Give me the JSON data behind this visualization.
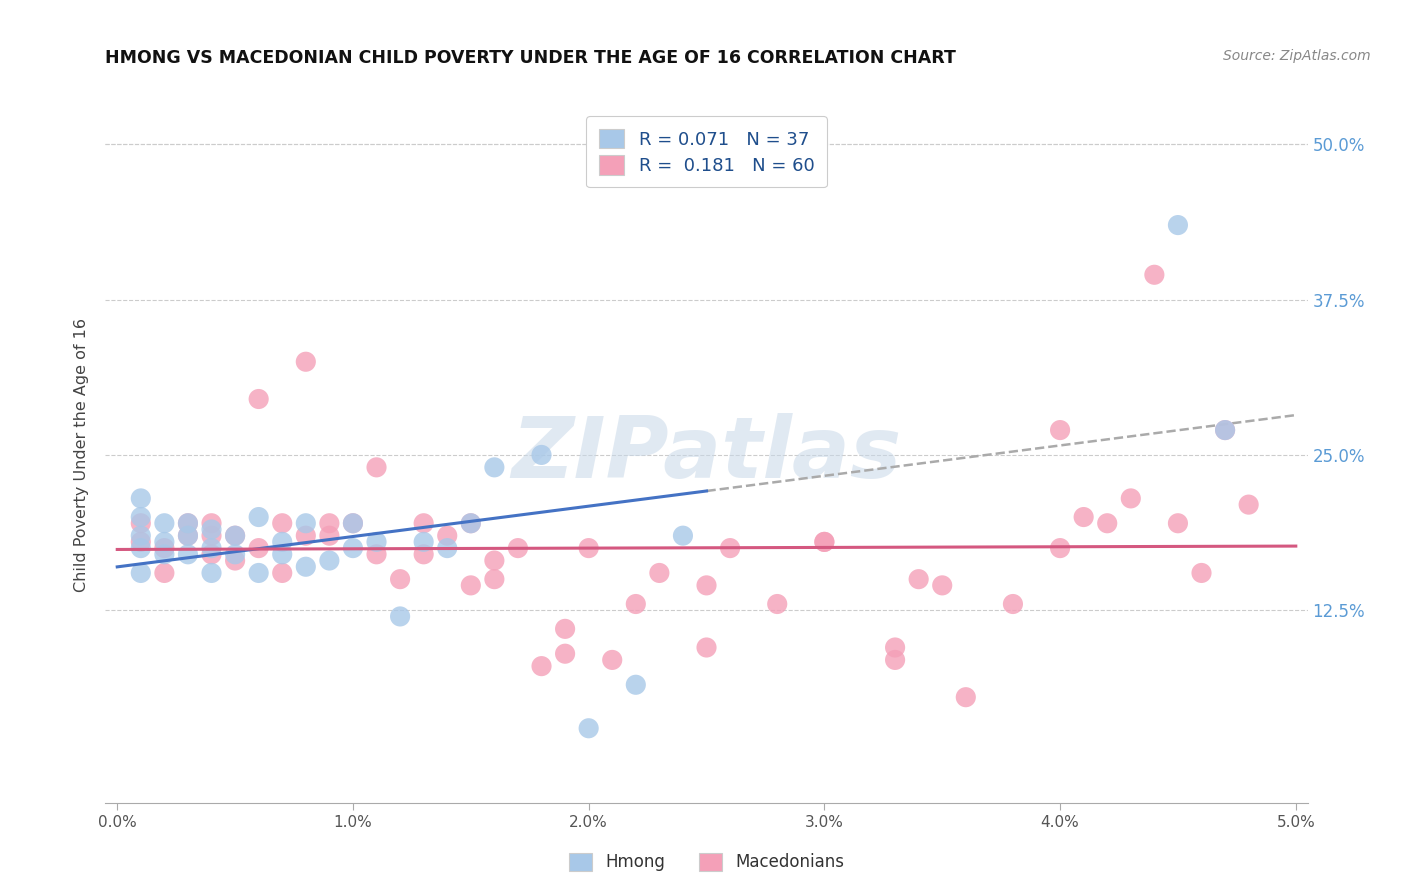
{
  "title": "HMONG VS MACEDONIAN CHILD POVERTY UNDER THE AGE OF 16 CORRELATION CHART",
  "source": "Source: ZipAtlas.com",
  "ylabel": "Child Poverty Under the Age of 16",
  "xmin": -0.0005,
  "xmax": 0.0505,
  "ymin": -0.03,
  "ymax": 0.53,
  "hmong_R": 0.071,
  "hmong_N": 37,
  "macd_R": 0.181,
  "macd_N": 60,
  "hmong_color": "#a8c8e8",
  "macd_color": "#f4a0b8",
  "hmong_line_color": "#4472c4",
  "macd_line_color": "#d45880",
  "dash_color": "#aaaaaa",
  "ytick_right_color": "#5b9bd5",
  "watermark_text": "ZIPatlas",
  "watermark_color": "#c8d8e8",
  "grid_color": "#cccccc",
  "hmong_x": [
    0.001,
    0.001,
    0.001,
    0.001,
    0.001,
    0.002,
    0.002,
    0.002,
    0.003,
    0.003,
    0.003,
    0.004,
    0.004,
    0.004,
    0.005,
    0.005,
    0.006,
    0.006,
    0.007,
    0.007,
    0.008,
    0.008,
    0.009,
    0.01,
    0.01,
    0.011,
    0.012,
    0.013,
    0.014,
    0.015,
    0.016,
    0.018,
    0.02,
    0.022,
    0.024,
    0.045,
    0.047
  ],
  "hmong_y": [
    0.155,
    0.175,
    0.185,
    0.2,
    0.215,
    0.17,
    0.18,
    0.195,
    0.17,
    0.185,
    0.195,
    0.155,
    0.175,
    0.19,
    0.17,
    0.185,
    0.155,
    0.2,
    0.17,
    0.18,
    0.16,
    0.195,
    0.165,
    0.175,
    0.195,
    0.18,
    0.12,
    0.18,
    0.175,
    0.195,
    0.24,
    0.25,
    0.03,
    0.065,
    0.185,
    0.435,
    0.27
  ],
  "macd_x": [
    0.001,
    0.001,
    0.002,
    0.002,
    0.003,
    0.003,
    0.004,
    0.004,
    0.004,
    0.005,
    0.005,
    0.006,
    0.006,
    0.007,
    0.007,
    0.008,
    0.008,
    0.009,
    0.009,
    0.01,
    0.011,
    0.011,
    0.012,
    0.013,
    0.013,
    0.014,
    0.015,
    0.015,
    0.016,
    0.016,
    0.017,
    0.018,
    0.019,
    0.019,
    0.02,
    0.021,
    0.022,
    0.023,
    0.025,
    0.026,
    0.028,
    0.03,
    0.033,
    0.033,
    0.034,
    0.036,
    0.038,
    0.04,
    0.041,
    0.042,
    0.043,
    0.044,
    0.045,
    0.046,
    0.047,
    0.048,
    0.025,
    0.03,
    0.035,
    0.04
  ],
  "macd_y": [
    0.18,
    0.195,
    0.155,
    0.175,
    0.185,
    0.195,
    0.17,
    0.185,
    0.195,
    0.165,
    0.185,
    0.175,
    0.295,
    0.155,
    0.195,
    0.185,
    0.325,
    0.185,
    0.195,
    0.195,
    0.17,
    0.24,
    0.15,
    0.17,
    0.195,
    0.185,
    0.145,
    0.195,
    0.15,
    0.165,
    0.175,
    0.08,
    0.09,
    0.11,
    0.175,
    0.085,
    0.13,
    0.155,
    0.095,
    0.175,
    0.13,
    0.18,
    0.085,
    0.095,
    0.15,
    0.055,
    0.13,
    0.175,
    0.2,
    0.195,
    0.215,
    0.395,
    0.195,
    0.155,
    0.27,
    0.21,
    0.145,
    0.18,
    0.145,
    0.27
  ]
}
